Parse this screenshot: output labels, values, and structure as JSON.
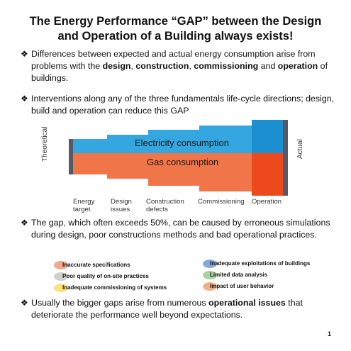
{
  "title_line1": "The Energy Performance “GAP” between the Design",
  "title_line2": "and Operation of a Building always exists!",
  "bullet_mark": "❖",
  "bullet1": {
    "t1": "Differences between expected and actual energy consumption arise from problems with the ",
    "b1": "design",
    "t2": ", ",
    "b2": "construction",
    "t3": ", ",
    "b3": "commissioning",
    "t4": " and ",
    "b4": "operation",
    "t5": " of buildings."
  },
  "bullet2": "Interventions along any of the three fundamentals life-cycle directions; design, build and operation can reduce this GAP",
  "bullet3": "The gap, which often exceeds 50%, can be caused by erroneous simulations during design, poor constructions methods and bad operational practices.",
  "bullet4": {
    "t1": "Usually the bigger gaps arise from numerous ",
    "b1": "operational issues",
    "t2": " that deteriorate the performance well beyond expectations."
  },
  "chart": {
    "electricity_label": "Electricity consumption",
    "gas_label": "Gas consumption",
    "theoretical_label": "Theoretical",
    "actual_label": "Actual",
    "stages": [
      {
        "line1": "Energy",
        "line2": "target"
      },
      {
        "line1": "Design",
        "line2": "issues"
      },
      {
        "line1": "Construction",
        "line2": "defects"
      },
      {
        "line1": "Commissioning",
        "line2": ""
      },
      {
        "line1": "Operation",
        "line2": ""
      }
    ],
    "colors": {
      "electricity": "#35a7e0",
      "electricity_dark": "#1c8fd0",
      "gas": "#f0764a",
      "gas_dark": "#ec4a1c",
      "marker": "#555a66"
    }
  },
  "legend": [
    {
      "label": "Inaccurate specifications",
      "color": "#f2a98f"
    },
    {
      "label": "Poor quality of on-site practices",
      "color": "#cfcfcf"
    },
    {
      "label": "Inadequate commissioning of systems",
      "color": "#fbe27a"
    },
    {
      "label": "Inadequate exploitations of buildings",
      "color": "#8aa6d8"
    },
    {
      "label": "Limited data analysis",
      "color": "#a9d39a"
    },
    {
      "label": "Impact of user behavior",
      "color": "#f2b089"
    }
  ],
  "page_number": "1"
}
